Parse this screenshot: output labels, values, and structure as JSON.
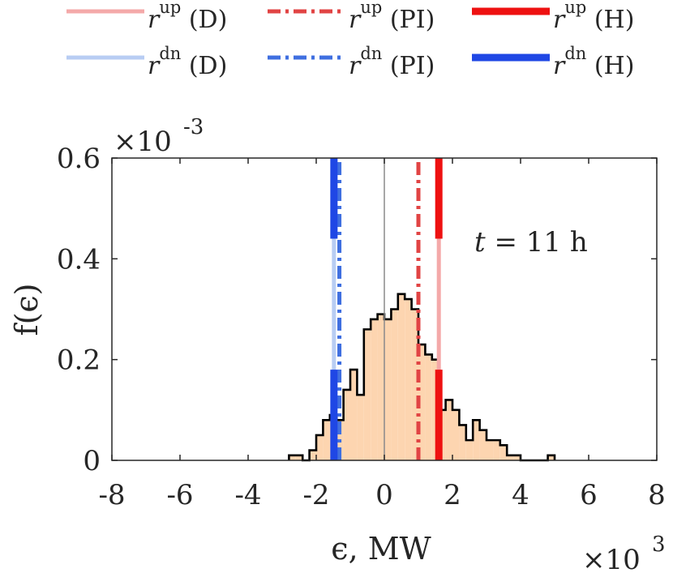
{
  "chart_data": {
    "type": "histogram",
    "xlabel": "ϵ, MW",
    "ylabel": "f(ϵ)",
    "x_multiplier": {
      "base": "×10",
      "exp": "3"
    },
    "y_multiplier": {
      "base": "×10",
      "exp": "-3"
    },
    "xlim": [
      -8,
      8
    ],
    "ylim": [
      0,
      0.6
    ],
    "x_ticks": [
      -8,
      -6,
      -4,
      -2,
      0,
      2,
      4,
      6,
      8
    ],
    "y_ticks": [
      0,
      0.2,
      0.4,
      0.6
    ],
    "x_tick_labels": [
      "-8",
      "-6",
      "-4",
      "-2",
      "0",
      "2",
      "4",
      "6",
      "8"
    ],
    "y_tick_labels": [
      "0",
      "0.2",
      "0.4",
      "0.6"
    ],
    "annotation": {
      "var": "t",
      "rest": " = 11 h"
    },
    "zero_line_x": 0,
    "bin_width": 0.2,
    "histogram": {
      "bin_left_edges": [
        -2.8,
        -2.6,
        -2.4,
        -2.2,
        -2.0,
        -1.8,
        -1.6,
        -1.4,
        -1.2,
        -1.0,
        -0.8,
        -0.6,
        -0.4,
        -0.2,
        0.0,
        0.2,
        0.4,
        0.6,
        0.8,
        1.0,
        1.2,
        1.4,
        1.6,
        1.8,
        2.0,
        2.2,
        2.4,
        2.6,
        2.8,
        3.0,
        3.2,
        3.4,
        3.6,
        3.8,
        4.0,
        4.2,
        4.4,
        4.6,
        4.8
      ],
      "densities": [
        0.01,
        0.01,
        0.0,
        0.02,
        0.05,
        0.08,
        0.09,
        0.08,
        0.14,
        0.18,
        0.13,
        0.26,
        0.28,
        0.29,
        0.28,
        0.3,
        0.33,
        0.32,
        0.3,
        0.23,
        0.21,
        0.2,
        0.1,
        0.12,
        0.1,
        0.07,
        0.04,
        0.08,
        0.06,
        0.04,
        0.04,
        0.03,
        0.01,
        0.01,
        0.0,
        0.0,
        0.0,
        0.0,
        0.01
      ],
      "fill_color": "#fdd5b0",
      "edge_color": "#000000"
    },
    "reserve_lines": [
      {
        "name": "r^up (D)",
        "x": 1.6,
        "color": "#f4a9a9",
        "style": "solid",
        "width": "thin",
        "ymin": 0.0,
        "ymax": 0.6
      },
      {
        "name": "r^dn (D)",
        "x": -1.48,
        "color": "#b8cdf3",
        "style": "solid",
        "width": "thin",
        "ymin": 0.0,
        "ymax": 0.6
      },
      {
        "name": "r^up (PI)",
        "x": 1.0,
        "color": "#e14444",
        "style": "dashdot",
        "width": "thin",
        "ymin": 0.0,
        "ymax": 0.6
      },
      {
        "name": "r^dn (PI)",
        "x": -1.32,
        "color": "#3f6fe0",
        "style": "dashdot",
        "width": "thin",
        "ymin": 0.0,
        "ymax": 0.6
      },
      {
        "name": "r^up (H)",
        "x": 1.6,
        "color": "#ee1111",
        "style": "solid",
        "width": "thick",
        "ymin": 0.0,
        "ymax": 0.18
      },
      {
        "name": "r^up (H)",
        "x": 1.6,
        "color": "#ee1111",
        "style": "solid",
        "width": "thick",
        "ymin": 0.44,
        "ymax": 0.6
      },
      {
        "name": "r^dn (H)",
        "x": -1.48,
        "color": "#1f47e5",
        "style": "solid",
        "width": "thick",
        "ymin": 0.0,
        "ymax": 0.18
      },
      {
        "name": "r^dn (H)",
        "x": -1.48,
        "color": "#1f47e5",
        "style": "solid",
        "width": "thick",
        "ymin": 0.44,
        "ymax": 0.6
      }
    ],
    "legend": {
      "placement": "top",
      "entries": [
        {
          "base": "r",
          "sup": "up",
          "suffix": " (D)",
          "color": "#f4a9a9",
          "style": "solid",
          "width": "thin"
        },
        {
          "base": "r",
          "sup": "up",
          "suffix": " (PI)",
          "color": "#e14444",
          "style": "dashdot",
          "width": "thin"
        },
        {
          "base": "r",
          "sup": "up",
          "suffix": " (H)",
          "color": "#ee1111",
          "style": "solid",
          "width": "thick"
        },
        {
          "base": "r",
          "sup": "dn",
          "suffix": " (D)",
          "color": "#b8cdf3",
          "style": "solid",
          "width": "thin"
        },
        {
          "base": "r",
          "sup": "dn",
          "suffix": " (PI)",
          "color": "#3f6fe0",
          "style": "dashdot",
          "width": "thin"
        },
        {
          "base": "r",
          "sup": "dn",
          "suffix": " (H)",
          "color": "#1f47e5",
          "style": "solid",
          "width": "thick"
        }
      ]
    }
  }
}
